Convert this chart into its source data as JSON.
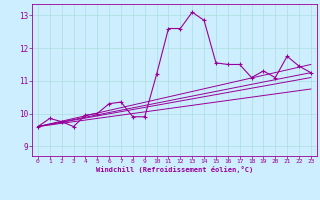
{
  "title": "",
  "xlabel": "Windchill (Refroidissement éolien,°C)",
  "bg_color": "#cceeff",
  "line_color": "#990099",
  "grid_color": "#aadddd",
  "x_ticks": [
    0,
    1,
    2,
    3,
    4,
    5,
    6,
    7,
    8,
    9,
    10,
    11,
    12,
    13,
    14,
    15,
    16,
    17,
    18,
    19,
    20,
    21,
    22,
    23
  ],
  "y_ticks": [
    9,
    10,
    11,
    12,
    13
  ],
  "ylim": [
    8.7,
    13.35
  ],
  "xlim": [
    -0.5,
    23.5
  ],
  "main_series_x": [
    0,
    1,
    2,
    3,
    4,
    5,
    6,
    7,
    8,
    9,
    10,
    11,
    12,
    13,
    14,
    15,
    16,
    17,
    18,
    19,
    20,
    21,
    22,
    23
  ],
  "main_series_y": [
    9.6,
    9.85,
    9.75,
    9.6,
    9.95,
    10.0,
    10.3,
    10.35,
    9.9,
    9.9,
    11.2,
    12.6,
    12.6,
    13.1,
    12.85,
    11.55,
    11.5,
    11.5,
    11.1,
    11.3,
    11.1,
    11.75,
    11.45,
    11.25
  ],
  "straight_lines": [
    [
      9.6,
      11.5
    ],
    [
      9.6,
      11.25
    ],
    [
      9.6,
      11.1
    ],
    [
      9.6,
      10.75
    ]
  ]
}
